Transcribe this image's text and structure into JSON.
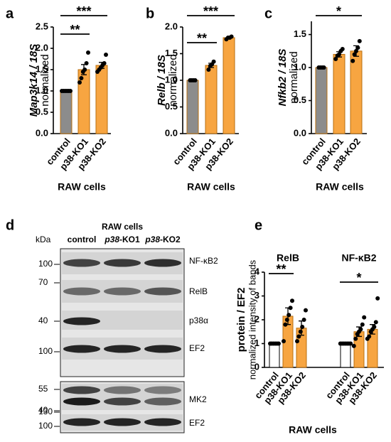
{
  "chart_data": [
    {
      "type": "bar",
      "panel": "a",
      "ylabel": "Map3k14 / 18S",
      "ylabel2": "normalized",
      "xlabel": "RAW cells",
      "categories": [
        "control",
        "p38-KO1",
        "p38-KO2"
      ],
      "values": [
        1.0,
        1.5,
        1.6
      ],
      "errors": [
        0.02,
        0.12,
        0.07
      ],
      "points": [
        [
          1,
          1,
          1,
          1,
          1,
          1
        ],
        [
          1.2,
          1.3,
          1.45,
          1.5,
          1.65,
          1.9
        ],
        [
          1.45,
          1.5,
          1.55,
          1.6,
          1.65,
          1.85
        ]
      ],
      "colors": [
        "#8c8c8c",
        "#f7a541",
        "#f7a541"
      ],
      "ylim": [
        0,
        2.5
      ],
      "yticks": [
        {
          "value": 0,
          "label": "0.0"
        },
        0.5,
        {
          "value": 1,
          "label": "1.0"
        },
        1.5,
        {
          "value": 2,
          "label": "2.0"
        },
        2.5
      ],
      "significance": [
        {
          "label": "**",
          "between": [
            "control",
            "p38-KO1"
          ]
        },
        {
          "label": "***",
          "between": [
            "control",
            "p38-KO2"
          ]
        }
      ]
    },
    {
      "type": "bar",
      "panel": "b",
      "ylabel": "Relb / 18S",
      "ylabel2": "normalized",
      "xlabel": "RAW cells",
      "categories": [
        "control",
        "p38-KO1",
        "p38-KO2"
      ],
      "values": [
        1.0,
        1.28,
        1.8
      ],
      "errors": [
        0.01,
        0.04,
        0.01
      ],
      "points": [
        [
          1,
          1,
          1,
          1
        ],
        [
          1.2,
          1.27,
          1.3,
          1.35
        ],
        [
          1.77,
          1.8,
          1.8,
          1.82
        ]
      ],
      "colors": [
        "#8c8c8c",
        "#f7a541",
        "#f7a541"
      ],
      "ylim": [
        0,
        2.0
      ],
      "yticks": [
        {
          "value": 0,
          "label": "0.0"
        },
        0.5,
        {
          "value": 1,
          "label": "1.0"
        },
        1.5,
        {
          "value": 2,
          "label": "2.0"
        }
      ],
      "significance": [
        {
          "label": "**",
          "between": [
            "control",
            "p38-KO1"
          ]
        },
        {
          "label": "***",
          "between": [
            "control",
            "p38-KO2"
          ]
        }
      ]
    },
    {
      "type": "bar",
      "panel": "c",
      "ylabel": "Nfkb2 / 18S",
      "ylabel2": "normalized",
      "xlabel": "RAW cells",
      "categories": [
        "control",
        "p38-KO1",
        "p38-KO2"
      ],
      "values": [
        1.0,
        1.2,
        1.25
      ],
      "errors": [
        0.01,
        0.04,
        0.08
      ],
      "points": [
        [
          1,
          1,
          1,
          1
        ],
        [
          1.13,
          1.18,
          1.2,
          1.25,
          1.28
        ],
        [
          1.1,
          1.2,
          1.25,
          1.3,
          1.4
        ]
      ],
      "colors": [
        "#8c8c8c",
        "#f7a541",
        "#f7a541"
      ],
      "ylim": [
        0,
        1.7
      ],
      "yticks": [
        {
          "value": 0,
          "label": "0.0"
        },
        0.5,
        {
          "value": 1,
          "label": "1.0"
        },
        1.5
      ],
      "significance": [
        {
          "label": "*",
          "between": [
            "control",
            "p38-KO2"
          ]
        }
      ]
    },
    {
      "type": "grouped_bar",
      "panel": "e",
      "ylabel": "protein / EF2",
      "ylabel2": "normalized intensity of bands",
      "xlabel": "RAW cells",
      "groups": [
        "RelB",
        "NF-κB2"
      ],
      "categories": [
        "control",
        "p38-KO1",
        "p38-KO2"
      ],
      "values": [
        [
          1.0,
          2.15,
          1.65
        ],
        [
          1.0,
          1.5,
          1.6
        ]
      ],
      "errors": [
        [
          0.03,
          0.35,
          0.3
        ],
        [
          0.03,
          0.2,
          0.2
        ]
      ],
      "points": [
        [
          [
            1,
            1,
            1,
            1,
            1,
            1
          ],
          [
            1.1,
            1.8,
            2.0,
            2.2,
            2.5,
            2.8
          ],
          [
            1.1,
            1.3,
            1.5,
            1.7,
            2.0,
            2.4
          ]
        ],
        [
          [
            1,
            1,
            1,
            1,
            1,
            1,
            1
          ],
          [
            0.9,
            1.2,
            1.4,
            1.5,
            1.6,
            1.8,
            2.1
          ],
          [
            1.2,
            1.3,
            1.5,
            1.6,
            1.7,
            1.9,
            2.9
          ]
        ]
      ],
      "colors": [
        "#ffffff",
        "#f7a541",
        "#f7a541"
      ],
      "ylim": [
        0,
        4
      ],
      "yticks": [
        0,
        1,
        2,
        3,
        4
      ],
      "significance": [
        [
          {
            "label": "**",
            "between": [
              "control",
              "p38-KO1"
            ]
          }
        ],
        [
          {
            "label": "*",
            "between": [
              "control",
              "p38-KO2"
            ]
          }
        ]
      ]
    }
  ],
  "blot": {
    "panel": "d",
    "title": "RAW cells",
    "unit": "kDa",
    "lanes": [
      [
        "control"
      ],
      [
        "p38",
        "-KO1"
      ],
      [
        "p38",
        "-KO2"
      ]
    ],
    "rows": [
      {
        "protein": "NF-κB2",
        "markers": [
          100
        ]
      },
      {
        "protein": "RelB",
        "markers": [
          70
        ]
      },
      {
        "protein": "p38α",
        "markers": [
          40
        ]
      },
      {
        "protein": "EF2",
        "markers": [
          100
        ]
      },
      {
        "protein": "MK2",
        "markers": [
          55,
          40
        ]
      },
      {
        "protein": "EF2",
        "markers": [
          130,
          100
        ]
      }
    ]
  }
}
